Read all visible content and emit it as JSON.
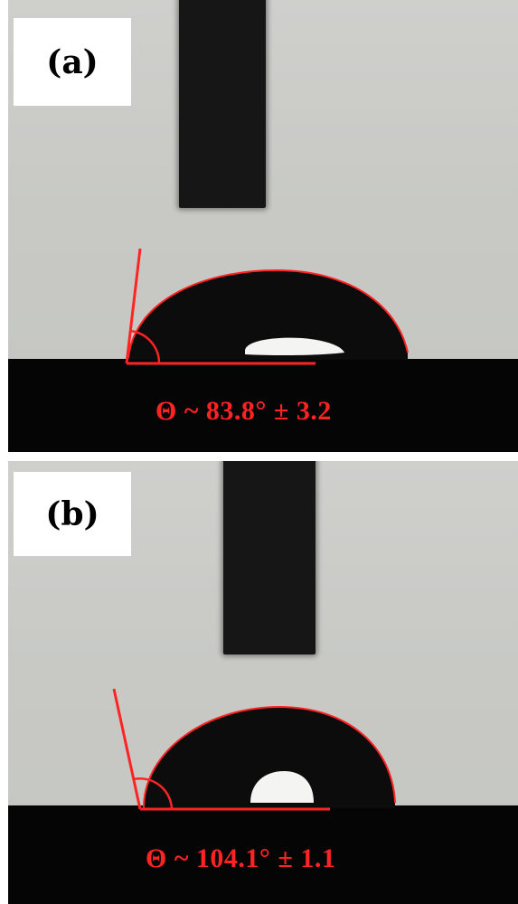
{
  "figure": {
    "panels": [
      {
        "label": "(a)",
        "contact_angle_text": "Θ ~ 83.8° ± 3.2",
        "contact_angle_deg": 83.8,
        "uncertainty_deg": 3.2
      },
      {
        "label": "(b)",
        "contact_angle_text": "Θ ~ 104.1° ± 1.1",
        "contact_angle_deg": 104.1,
        "uncertainty_deg": 1.1
      }
    ]
  },
  "colors": {
    "annotation": "#ff2323",
    "background": "#c8c9c5",
    "substrate": "#050505",
    "droplet": "#0c0c0c",
    "label_box": "#ffffff"
  }
}
